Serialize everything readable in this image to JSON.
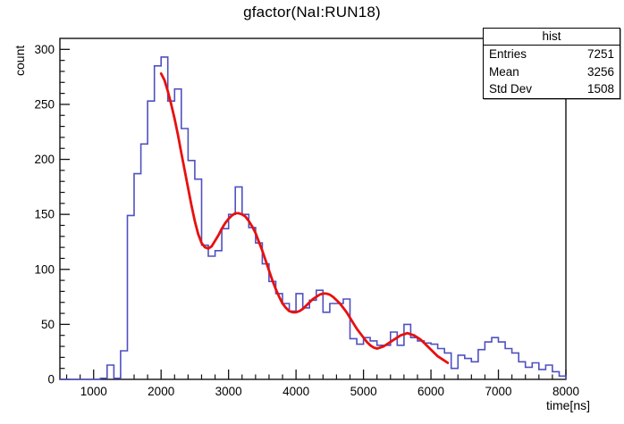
{
  "title": "gfactor(NaI:RUN18)",
  "stats": {
    "title": "hist",
    "rows": [
      {
        "label": "Entries",
        "value": "7251"
      },
      {
        "label": "Mean",
        "value": "3256"
      },
      {
        "label": "Std Dev",
        "value": "1508"
      }
    ]
  },
  "chart_data": {
    "type": "histogram-with-fit",
    "title": "gfactor(NaI:RUN18)",
    "xlabel": "time[ns]",
    "ylabel": "count",
    "xlim": [
      500,
      8000
    ],
    "ylim": [
      0,
      310
    ],
    "xticks": [
      1000,
      2000,
      3000,
      4000,
      5000,
      6000,
      7000,
      8000
    ],
    "yticks": [
      0,
      50,
      100,
      150,
      200,
      250,
      300
    ],
    "x_minor_step": 200,
    "y_minor_step": 10,
    "grid": false,
    "bin_start": 500,
    "bin_width": 100,
    "bin_counts": [
      0,
      0,
      0,
      0,
      0,
      0,
      1,
      13,
      1,
      26,
      149,
      187,
      214,
      253,
      285,
      293,
      253,
      264,
      228,
      199,
      182,
      122,
      112,
      117,
      137,
      150,
      175,
      150,
      138,
      124,
      105,
      89,
      78,
      69,
      62,
      78,
      65,
      72,
      81,
      61,
      69,
      69,
      73,
      37,
      32,
      38,
      35,
      31,
      31,
      43,
      31,
      50,
      38,
      35,
      33,
      32,
      28,
      24,
      10,
      22,
      19,
      16,
      27,
      34,
      38,
      34,
      28,
      24,
      16,
      11,
      15,
      9,
      13,
      7,
      3
    ],
    "series": [
      {
        "name": "hist",
        "style": "step-histogram",
        "color": "#4f50c0"
      },
      {
        "name": "fit",
        "style": "smooth-curve",
        "color": "#e8100e"
      }
    ],
    "fit_points": [
      [
        2000,
        278
      ],
      [
        2050,
        272
      ],
      [
        2100,
        262
      ],
      [
        2150,
        250
      ],
      [
        2200,
        237
      ],
      [
        2250,
        222
      ],
      [
        2300,
        206
      ],
      [
        2350,
        190
      ],
      [
        2400,
        174
      ],
      [
        2450,
        158
      ],
      [
        2500,
        144
      ],
      [
        2550,
        132
      ],
      [
        2600,
        124
      ],
      [
        2650,
        120
      ],
      [
        2700,
        119
      ],
      [
        2750,
        121
      ],
      [
        2800,
        126
      ],
      [
        2850,
        131
      ],
      [
        2900,
        137
      ],
      [
        2950,
        142
      ],
      [
        3000,
        146
      ],
      [
        3050,
        149
      ],
      [
        3100,
        151
      ],
      [
        3150,
        151
      ],
      [
        3200,
        150
      ],
      [
        3250,
        148
      ],
      [
        3300,
        144
      ],
      [
        3350,
        139
      ],
      [
        3400,
        133
      ],
      [
        3450,
        125
      ],
      [
        3500,
        117
      ],
      [
        3550,
        108
      ],
      [
        3600,
        99
      ],
      [
        3650,
        90
      ],
      [
        3700,
        82
      ],
      [
        3750,
        75
      ],
      [
        3800,
        69
      ],
      [
        3850,
        65
      ],
      [
        3900,
        62
      ],
      [
        3950,
        61
      ],
      [
        4000,
        61
      ],
      [
        4050,
        62
      ],
      [
        4100,
        64
      ],
      [
        4150,
        67
      ],
      [
        4200,
        70
      ],
      [
        4250,
        73
      ],
      [
        4300,
        75
      ],
      [
        4350,
        77
      ],
      [
        4400,
        78
      ],
      [
        4450,
        78
      ],
      [
        4500,
        77
      ],
      [
        4550,
        75
      ],
      [
        4600,
        72
      ],
      [
        4650,
        69
      ],
      [
        4700,
        65
      ],
      [
        4750,
        61
      ],
      [
        4800,
        56
      ],
      [
        4850,
        51
      ],
      [
        4900,
        46
      ],
      [
        4950,
        42
      ],
      [
        5000,
        38
      ],
      [
        5050,
        34
      ],
      [
        5100,
        31
      ],
      [
        5150,
        29
      ],
      [
        5200,
        28
      ],
      [
        5250,
        29
      ],
      [
        5300,
        30
      ],
      [
        5350,
        32
      ],
      [
        5400,
        34
      ],
      [
        5450,
        36
      ],
      [
        5500,
        38
      ],
      [
        5550,
        40
      ],
      [
        5600,
        41
      ],
      [
        5650,
        42
      ],
      [
        5700,
        41
      ],
      [
        5750,
        40
      ],
      [
        5800,
        38
      ],
      [
        5850,
        36
      ],
      [
        5900,
        33
      ],
      [
        5950,
        30
      ],
      [
        6000,
        27
      ],
      [
        6050,
        24
      ],
      [
        6100,
        21
      ],
      [
        6150,
        19
      ],
      [
        6200,
        17
      ],
      [
        6250,
        15
      ]
    ],
    "frame_color": "#111111",
    "background": "#ffffff"
  }
}
